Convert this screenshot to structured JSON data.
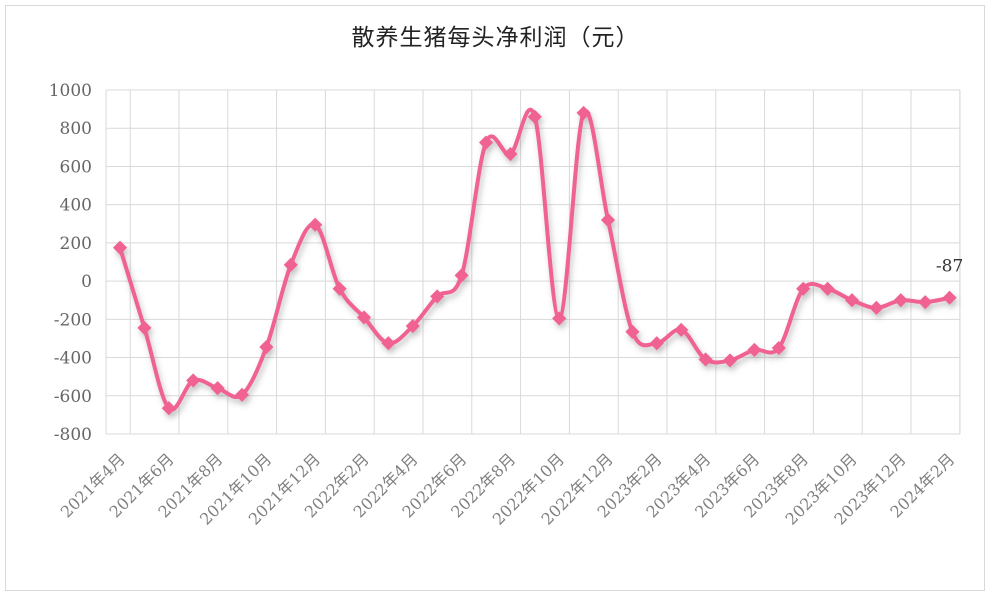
{
  "chart_data": {
    "type": "line",
    "title": "散养生猪每头净利润（元）",
    "xlabel": "",
    "ylabel": "",
    "ylim": [
      -800,
      1000
    ],
    "yticks": [
      1000,
      800,
      600,
      400,
      200,
      0,
      -200,
      -400,
      -600,
      -800
    ],
    "x": [
      "2021年4月",
      "2021年5月",
      "2021年6月",
      "2021年7月",
      "2021年8月",
      "2021年9月",
      "2021年10月",
      "2021年11月",
      "2021年12月",
      "2022年1月",
      "2022年2月",
      "2022年3月",
      "2022年4月",
      "2022年5月",
      "2022年6月",
      "2022年7月",
      "2022年8月",
      "2022年9月",
      "2022年10月",
      "2022年11月",
      "2022年12月",
      "2023年1月",
      "2023年2月",
      "2023年3月",
      "2023年4月",
      "2023年5月",
      "2023年6月",
      "2023年7月",
      "2023年8月",
      "2023年9月",
      "2023年10月",
      "2023年11月",
      "2023年12月",
      "2024年1月",
      "2024年2月"
    ],
    "xtick_labels": [
      "2021年4月",
      "2021年6月",
      "2021年8月",
      "2021年10月",
      "2021年12月",
      "2022年2月",
      "2022年4月",
      "2022年6月",
      "2022年8月",
      "2022年10月",
      "2022年12月",
      "2023年2月",
      "2023年4月",
      "2023年6月",
      "2023年8月",
      "2023年10月",
      "2023年12月",
      "2024年2月"
    ],
    "values": [
      175,
      -245,
      -665,
      -520,
      -560,
      -595,
      -345,
      85,
      295,
      -40,
      -190,
      -325,
      -235,
      -80,
      30,
      725,
      665,
      860,
      -195,
      880,
      320,
      -265,
      -325,
      -255,
      -410,
      -415,
      -360,
      -350,
      -40,
      -40,
      -100,
      -140,
      -100,
      -110,
      -87
    ],
    "annotation": "-87",
    "line_color": "#f06292",
    "grid": true,
    "legend": "none"
  }
}
